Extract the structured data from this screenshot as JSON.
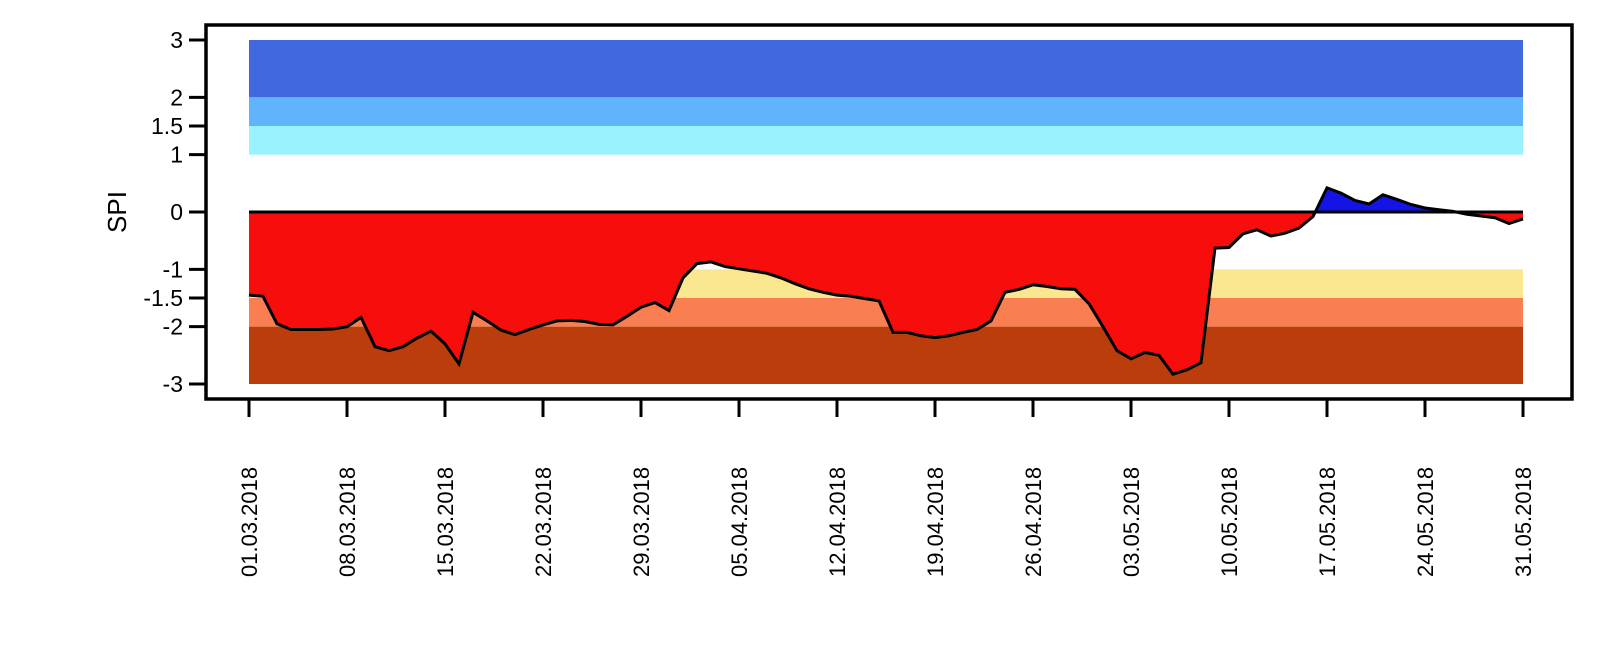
{
  "chart_data": {
    "type": "area",
    "title": "",
    "ylabel": "SPI",
    "xlabel": "",
    "legend": "none",
    "grid": false,
    "ylim": [
      -3.3,
      3.3
    ],
    "y_ticks": [
      "3",
      "2",
      "1.5",
      "1",
      "0",
      "-1",
      "-1.5",
      "-2",
      "-3"
    ],
    "y_tick_values": [
      3,
      2,
      1.5,
      1,
      0,
      -1,
      -1.5,
      -2,
      -3
    ],
    "x_tick_labels": [
      "01.03.2018",
      "08.03.2018",
      "15.03.2018",
      "22.03.2018",
      "29.03.2018",
      "05.04.2018",
      "12.04.2018",
      "19.04.2018",
      "26.04.2018",
      "03.05.2018",
      "10.05.2018",
      "17.05.2018",
      "24.05.2018",
      "31.05.2018"
    ],
    "x_tick_day_index": [
      0,
      7,
      14,
      21,
      28,
      35,
      42,
      49,
      56,
      63,
      70,
      77,
      84,
      91
    ],
    "x_start_label": "01.03.2018",
    "x_end_label": "31.05.2018",
    "frequency": "daily",
    "series": [
      {
        "name": "SPI",
        "values": [
          -1.45,
          -1.47,
          -1.95,
          -2.05,
          -2.05,
          -2.05,
          -2.04,
          -2.0,
          -1.84,
          -2.35,
          -2.42,
          -2.35,
          -2.2,
          -2.08,
          -2.3,
          -2.65,
          -1.75,
          -1.9,
          -2.06,
          -2.14,
          -2.05,
          -1.97,
          -1.9,
          -1.89,
          -1.91,
          -1.96,
          -1.97,
          -1.82,
          -1.66,
          -1.58,
          -1.72,
          -1.15,
          -0.9,
          -0.87,
          -0.95,
          -0.99,
          -1.03,
          -1.07,
          -1.15,
          -1.25,
          -1.34,
          -1.4,
          -1.45,
          -1.47,
          -1.51,
          -1.55,
          -2.1,
          -2.1,
          -2.16,
          -2.19,
          -2.16,
          -2.1,
          -2.05,
          -1.9,
          -1.4,
          -1.35,
          -1.27,
          -1.3,
          -1.34,
          -1.35,
          -1.6,
          -2.0,
          -2.42,
          -2.56,
          -2.45,
          -2.5,
          -2.83,
          -2.75,
          -2.63,
          -0.63,
          -0.62,
          -0.38,
          -0.31,
          -0.42,
          -0.37,
          -0.28,
          -0.08,
          0.42,
          0.33,
          0.2,
          0.14,
          0.3,
          0.22,
          0.13,
          0.07,
          0.04,
          0.01,
          -0.04,
          -0.07,
          -0.1,
          -0.2,
          -0.12
        ]
      }
    ],
    "bands": [
      {
        "name": "band-extremely-wet",
        "from": 2,
        "to": 3,
        "color": "#4168DF"
      },
      {
        "name": "band-severely-wet",
        "from": 1.5,
        "to": 2,
        "color": "#5FB4FC"
      },
      {
        "name": "band-moderately-wet",
        "from": 1,
        "to": 1.5,
        "color": "#9AF2FE"
      },
      {
        "name": "band-moderately-dry",
        "from": -1.5,
        "to": -1,
        "color": "#FAE78F"
      },
      {
        "name": "band-severely-dry",
        "from": -2,
        "to": -1.5,
        "color": "#F97E52"
      },
      {
        "name": "band-extremely-dry",
        "from": -3,
        "to": -2,
        "color": "#BC3D0C"
      }
    ],
    "colors": {
      "positive_fill": "#1414E6",
      "negative_fill": "#F80D0D",
      "line": "#000000",
      "frame": "#000000",
      "background": "#FFFFFF"
    }
  }
}
